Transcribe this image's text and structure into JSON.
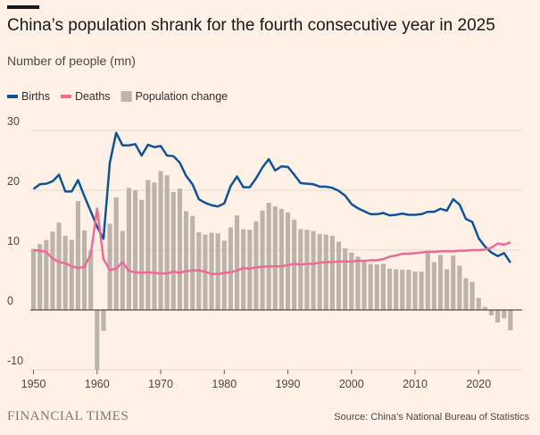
{
  "chart_data": {
    "type": "combo",
    "title": "China’s population shrank for the fourth consecutive year in 2025",
    "subtitle": "Number of people (mn)",
    "source": "Source: China’s National Bureau of Statistics",
    "brand": "FINANCIAL TIMES",
    "x": [
      1950,
      1951,
      1952,
      1953,
      1954,
      1955,
      1956,
      1957,
      1958,
      1959,
      1960,
      1961,
      1962,
      1963,
      1964,
      1965,
      1966,
      1967,
      1968,
      1969,
      1970,
      1971,
      1972,
      1973,
      1974,
      1975,
      1976,
      1977,
      1978,
      1979,
      1980,
      1981,
      1982,
      1983,
      1984,
      1985,
      1986,
      1987,
      1988,
      1989,
      1990,
      1991,
      1992,
      1993,
      1994,
      1995,
      1996,
      1997,
      1998,
      1999,
      2000,
      2001,
      2002,
      2003,
      2004,
      2005,
      2006,
      2007,
      2008,
      2009,
      2010,
      2011,
      2012,
      2013,
      2014,
      2015,
      2016,
      2017,
      2018,
      2019,
      2020,
      2021,
      2022,
      2023,
      2024,
      2025
    ],
    "series": [
      {
        "name": "Births",
        "type": "line",
        "color": "#0f5499",
        "values": [
          20.2,
          21.0,
          21.1,
          21.5,
          22.6,
          19.8,
          19.8,
          21.7,
          19.0,
          16.5,
          13.9,
          11.9,
          24.6,
          29.6,
          27.5,
          27.5,
          27.7,
          25.8,
          27.6,
          27.2,
          27.4,
          25.8,
          25.7,
          24.6,
          22.4,
          21.0,
          18.5,
          17.9,
          17.5,
          17.3,
          17.8,
          20.7,
          22.3,
          20.5,
          20.5,
          22.0,
          23.8,
          25.2,
          23.3,
          24.0,
          23.9,
          22.6,
          21.2,
          21.1,
          21.0,
          20.6,
          20.6,
          20.4,
          19.9,
          19.1,
          17.7,
          17.0,
          16.5,
          16.0,
          16.0,
          16.2,
          15.8,
          15.9,
          16.1,
          15.9,
          15.9,
          16.0,
          16.4,
          16.4,
          16.9,
          16.6,
          18.5,
          17.6,
          15.2,
          14.7,
          12.0,
          10.6,
          9.6,
          9.0,
          9.5,
          7.9
        ]
      },
      {
        "name": "Deaths",
        "type": "line",
        "color": "#ee6a95",
        "values": [
          10.0,
          9.9,
          9.7,
          8.6,
          8.0,
          7.8,
          7.3,
          7.0,
          7.2,
          9.3,
          16.9,
          8.5,
          6.7,
          6.9,
          8.0,
          6.5,
          6.3,
          6.2,
          6.3,
          6.2,
          6.1,
          6.1,
          6.4,
          6.2,
          6.5,
          6.6,
          6.6,
          6.4,
          6.0,
          6.0,
          6.2,
          6.3,
          6.6,
          7.0,
          6.9,
          7.1,
          7.2,
          7.3,
          7.3,
          7.3,
          7.5,
          7.7,
          7.6,
          7.7,
          7.7,
          7.9,
          8.0,
          8.0,
          8.1,
          8.1,
          8.1,
          8.2,
          8.2,
          8.3,
          8.3,
          8.5,
          8.9,
          9.1,
          9.4,
          9.4,
          9.5,
          9.6,
          9.7,
          9.7,
          9.8,
          9.8,
          9.8,
          9.9,
          9.9,
          10.0,
          10.0,
          10.1,
          10.4,
          11.1,
          10.9,
          11.3
        ]
      },
      {
        "name": "Population change",
        "type": "bar",
        "color": "#bcb4ab",
        "values": [
          10.2,
          11.0,
          11.7,
          13.1,
          14.6,
          12.4,
          11.7,
          18.2,
          13.3,
          9.9,
          -10.0,
          -3.5,
          14.4,
          18.8,
          13.2,
          20.4,
          20.0,
          18.4,
          21.7,
          21.3,
          23.2,
          22.5,
          19.7,
          20.3,
          16.5,
          15.7,
          13.0,
          12.6,
          12.9,
          12.8,
          11.6,
          13.8,
          15.8,
          13.5,
          13.4,
          14.8,
          16.6,
          17.9,
          17.3,
          16.9,
          16.3,
          15.1,
          13.5,
          13.4,
          13.2,
          12.7,
          12.6,
          12.4,
          11.4,
          10.3,
          9.6,
          8.9,
          8.3,
          7.7,
          7.6,
          7.7,
          6.9,
          6.8,
          6.7,
          6.7,
          6.4,
          6.4,
          9.9,
          8.0,
          9.2,
          6.8,
          9.1,
          7.4,
          5.3,
          4.7,
          2.0,
          0.5,
          -0.9,
          -2.1,
          -1.4,
          -3.4
        ]
      }
    ],
    "xlim": [
      1949.5,
      2026
    ],
    "xticks": [
      1950,
      1960,
      1970,
      1980,
      1990,
      2000,
      2010,
      2020
    ],
    "ylim": [
      -10,
      30
    ],
    "yticks": [
      -10,
      0,
      10,
      20,
      30
    ],
    "grid": true
  }
}
